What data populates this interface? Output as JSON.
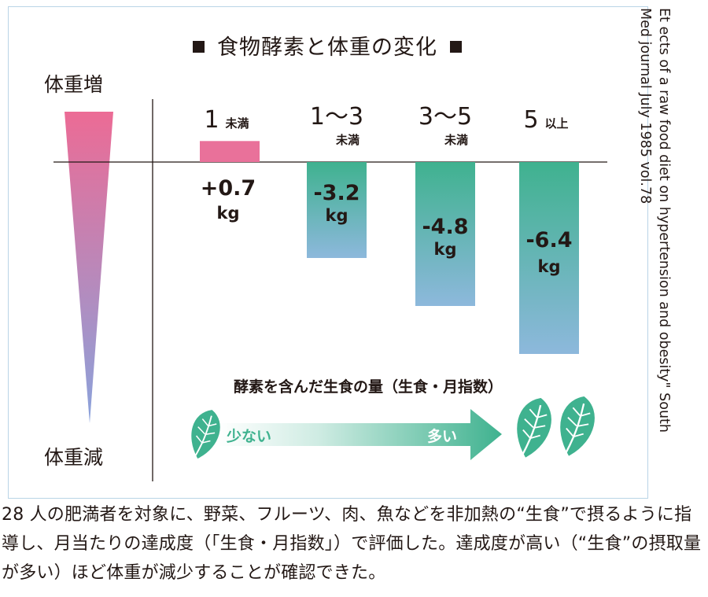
{
  "chart_data": {
    "type": "bar",
    "title": "食物酵素と体重の変化",
    "categories": [
      {
        "main": "1",
        "sub": "未満"
      },
      {
        "main": "1～3",
        "sub": "未満"
      },
      {
        "main": "3～5",
        "sub": "未満"
      },
      {
        "main": "5",
        "sub": "以上"
      }
    ],
    "values": [
      0.7,
      -3.2,
      -4.8,
      -6.4
    ],
    "value_labels": [
      "+0.7",
      "-3.2",
      "-4.8",
      "-6.4"
    ],
    "unit": "kg",
    "ylim": [
      -6.4,
      0.7
    ],
    "axis_top_label": "体重増",
    "axis_bottom_label": "体重減",
    "xlabel": "酵素を含んだ生食の量（生食・月指数）",
    "arrow_low": "少ない",
    "arrow_high": "多い",
    "grid": false,
    "colors": {
      "positive": "#e9719a",
      "negative_top": "#3fb28f",
      "negative_bottom": "#8db8dc",
      "wedge_top": "#ec6b95",
      "wedge_bottom": "#8aa3dc",
      "leaf": "#3fb28f"
    }
  },
  "citation": {
    "line1": "Et ects of a raw food diet on hypertension and obesity\" South",
    "line2": "Med journal July 1985  vol.78"
  },
  "caption": "28 人の肥満者を対象に、野菜、フルーツ、肉、魚などを非加熱の“生食”で摂るように指導し、月当たりの達成度（｢生食・月指数｣）で評価した。達成度が高い（“生食”の摂取量が多い）ほど体重が減少することが確認できた。"
}
